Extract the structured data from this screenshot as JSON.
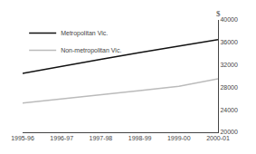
{
  "chart_data": {
    "type": "line",
    "categories": [
      "1995-96",
      "1996-97",
      "1997-98",
      "1998-99",
      "1999-00",
      "2000-01"
    ],
    "series": [
      {
        "name": "Metropolitan Vic.",
        "color": "#111111",
        "values": [
          30500,
          31800,
          33000,
          34200,
          35400,
          36500
        ]
      },
      {
        "name": "Non-metropolitan Vic.",
        "color": "#bbbbbb",
        "values": [
          25200,
          25900,
          26600,
          27400,
          28200,
          29500
        ]
      }
    ],
    "ylabel": "$",
    "ylim": [
      20000,
      40000
    ],
    "yticks": [
      20000,
      24000,
      28000,
      32000,
      36000,
      40000
    ],
    "grid": false,
    "legend": "upper left"
  }
}
